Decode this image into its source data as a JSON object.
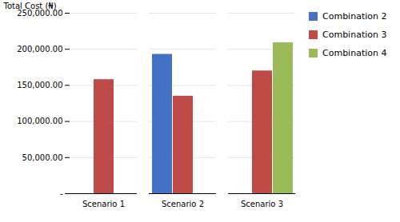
{
  "chart_data": {
    "type": "bar",
    "categories": [
      "Scenario 1",
      "Scenario 2",
      "Scenario 3"
    ],
    "series": [
      {
        "name": "Combination 2",
        "color": "#4472C4",
        "values": [
          null,
          193000,
          null
        ]
      },
      {
        "name": "Combination 3",
        "color": "#BE4B48",
        "values": [
          158000,
          135000,
          170000
        ]
      },
      {
        "name": "Combination 4",
        "color": "#9BBB59",
        "values": [
          null,
          null,
          209000
        ]
      }
    ],
    "ylabel": "Total Cost (₦)",
    "ylim": [
      0,
      250000
    ],
    "yticks": [
      {
        "value": 0,
        "label": "-"
      },
      {
        "value": 50000,
        "label": "50,000.00"
      },
      {
        "value": 100000,
        "label": "100,000.00"
      },
      {
        "value": 150000,
        "label": "150,000.00"
      },
      {
        "value": 200000,
        "label": "200,000.00"
      },
      {
        "value": 250000,
        "label": "250,000.00"
      }
    ],
    "grid": true,
    "legend": "right"
  }
}
